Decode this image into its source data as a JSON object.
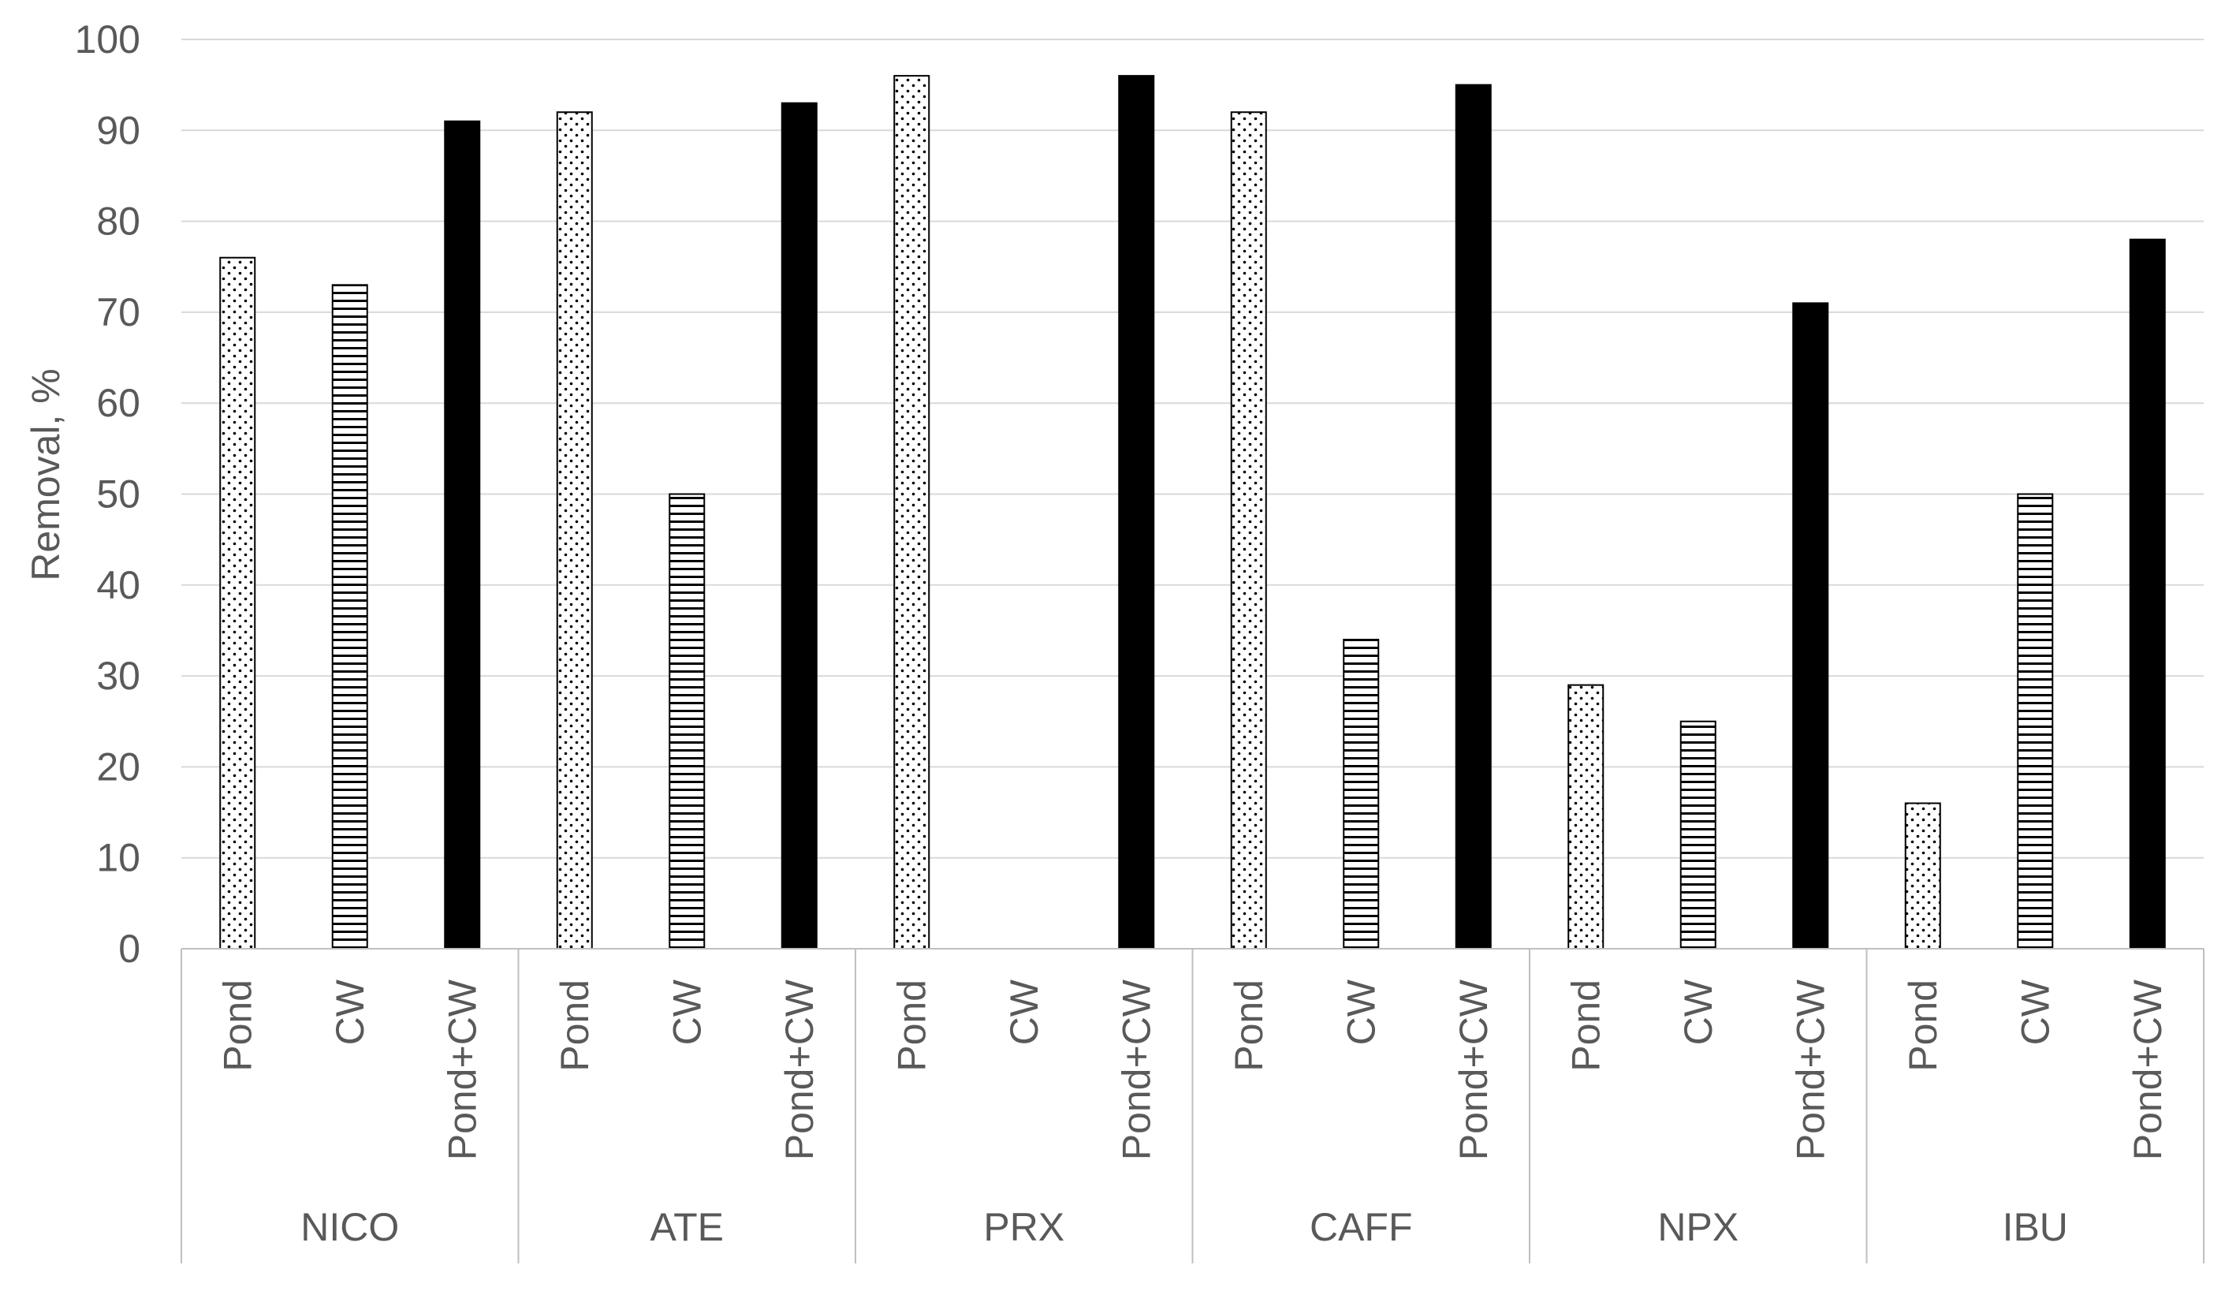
{
  "chart_data": {
    "type": "bar",
    "groups": [
      "NICO",
      "ATE",
      "PRX",
      "CAFF",
      "NPX",
      "IBU"
    ],
    "subcategories": [
      "Pond",
      "CW",
      "Pond+CW"
    ],
    "series": [
      {
        "name": "Pond",
        "values": [
          76,
          92,
          96,
          92,
          29,
          16
        ],
        "pattern": "dots",
        "color": "#ffffff"
      },
      {
        "name": "CW",
        "values": [
          73,
          50,
          0,
          34,
          25,
          50
        ],
        "pattern": "horizontal-lines",
        "color": "#ffffff"
      },
      {
        "name": "Pond+CW",
        "values": [
          91,
          93,
          96,
          95,
          71,
          78
        ],
        "pattern": "solid",
        "color": "#000000"
      }
    ],
    "ylabel": "Removal, %",
    "ylim": [
      0,
      100
    ],
    "yticks": [
      "0",
      "10",
      "20",
      "30",
      "40",
      "50",
      "60",
      "70",
      "80",
      "90",
      "100"
    ],
    "grid": true,
    "legend": "none",
    "colors": {
      "gridline": "#d9d9d9",
      "axis": "#bfbfbf",
      "text": "#595959",
      "bar_outline": "#000000"
    }
  }
}
